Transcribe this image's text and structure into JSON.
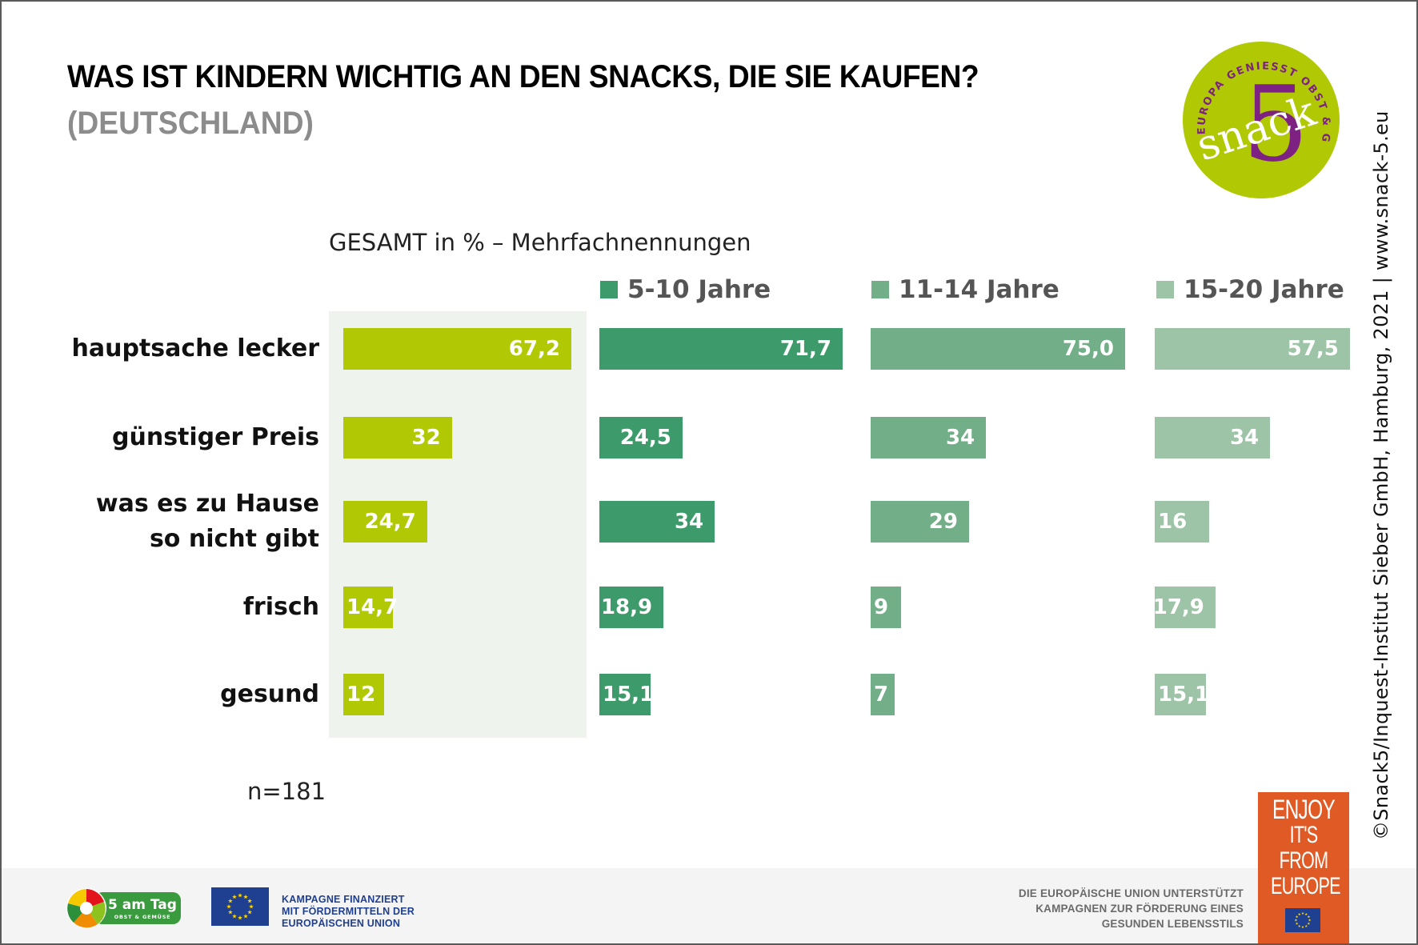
{
  "header": {
    "title": "WAS IST KINDERN WICHTIG AN DEN SNACKS, DIE SIE KAUFEN?",
    "subtitle": "(DEUTSCHLAND)"
  },
  "logo": {
    "ring_text": "EUROPA GENIESST OBST & GEMÜSE",
    "word": "snack",
    "numeral": "5",
    "colors": {
      "circle": "#b0c904",
      "accent": "#7d2182",
      "text": "#ffffff"
    }
  },
  "copyright": "©Snack5/Inquest-Institut Sieber GmbH, Hamburg, 2021 | www.snack-5.eu",
  "sample_note": "n=181",
  "chart_data": {
    "type": "bar",
    "orientation": "horizontal",
    "title": "WAS IST KINDERN WICHTIG AN DEN SNACKS, DIE SIE KAUFEN? (DEUTSCHLAND)",
    "subtitle": "GESAMT in % – Mehrfachnennungen",
    "xlabel": "",
    "ylabel": "",
    "unit": "%",
    "categories": [
      "hauptsache lecker",
      "günstiger Preis",
      "was es zu Hause so nicht gibt",
      "frisch",
      "gesund"
    ],
    "category_lines": [
      [
        "hauptsache lecker"
      ],
      [
        "günstiger Preis"
      ],
      [
        "was es zu Hause",
        "so nicht gibt"
      ],
      [
        "frisch"
      ],
      [
        "gesund"
      ]
    ],
    "series": [
      {
        "name": "GESAMT",
        "color": "#b0c904",
        "values": [
          67.2,
          32,
          24.7,
          14.7,
          12
        ],
        "labels": [
          "67,2",
          "32",
          "24,7",
          "14,7",
          "12"
        ]
      },
      {
        "name": "5-10 Jahre",
        "color": "#3d9b6b",
        "values": [
          71.7,
          24.5,
          34,
          18.9,
          15.1
        ],
        "labels": [
          "71,7",
          "24,5",
          "34",
          "18,9",
          "15,1"
        ]
      },
      {
        "name": "11-14 Jahre",
        "color": "#72ae87",
        "values": [
          75.0,
          34,
          29,
          9,
          7
        ],
        "labels": [
          "75,0",
          "34",
          "29",
          "9",
          "7"
        ]
      },
      {
        "name": "15-20 Jahre",
        "color": "#9dc4a6",
        "values": [
          57.5,
          34,
          16,
          17.9,
          15.1
        ],
        "labels": [
          "57,5",
          "34",
          "16",
          "17,9",
          "15,1"
        ]
      }
    ],
    "legend": [
      "5-10 Jahre",
      "11-14 Jahre",
      "15-20 Jahre"
    ],
    "legend_position": "top",
    "grid": false,
    "xlim": [
      0,
      100
    ],
    "highlight_panel_color": "#eef3ee"
  },
  "footer": {
    "five_a_day": {
      "title": "5 am Tag",
      "subtitle": "OBST & GEMÜSE"
    },
    "eu_funding": [
      "KAMPAGNE FINANZIERT",
      "MIT FÖRDERMITTELN DER",
      "EUROPÄISCHEN UNION"
    ],
    "eu_support": [
      "DIE EUROPÄISCHE UNION UNTERSTÜTZT",
      "KAMPAGNEN ZUR FÖRDERUNG EINES",
      "GESUNDEN LEBENSSTILS"
    ],
    "enjoy": [
      "ENJOY",
      "IT'S FROM",
      "EUROPE"
    ]
  }
}
